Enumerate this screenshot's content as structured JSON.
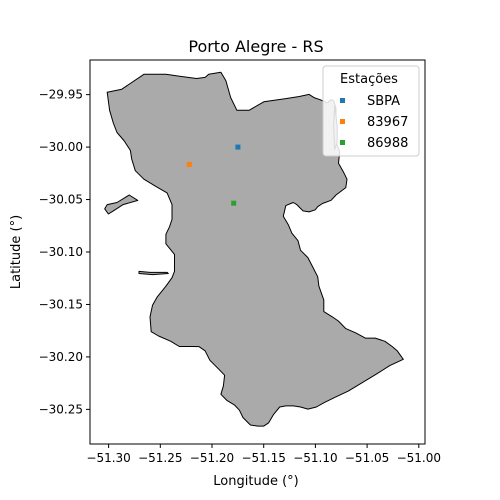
{
  "map": {
    "title": "Porto Alegre - RS",
    "xlabel": "Longitude (°)",
    "ylabel": "Latitude (°)",
    "xlim": [
      -51.318,
      -50.994
    ],
    "ylim": [
      -30.283,
      -29.917
    ],
    "x_ticks": [
      {
        "value": -51.3,
        "label": "−51.30"
      },
      {
        "value": -51.25,
        "label": "−51.25"
      },
      {
        "value": -51.2,
        "label": "−51.20"
      },
      {
        "value": -51.15,
        "label": "−51.15"
      },
      {
        "value": -51.1,
        "label": "−51.10"
      },
      {
        "value": -51.05,
        "label": "−51.05"
      },
      {
        "value": -51.0,
        "label": "−51.00"
      }
    ],
    "y_ticks": [
      {
        "value": -29.95,
        "label": "−29.95"
      },
      {
        "value": -30.0,
        "label": "−30.00"
      },
      {
        "value": -30.05,
        "label": "−30.05"
      },
      {
        "value": -30.1,
        "label": "−30.10"
      },
      {
        "value": -30.15,
        "label": "−30.15"
      },
      {
        "value": -30.2,
        "label": "−30.20"
      },
      {
        "value": -30.25,
        "label": "−30.25"
      }
    ],
    "polygon_fill": "#aaaaaa",
    "polygon_stroke": "#000000",
    "boundary": [
      [
        -51.3014,
        -29.9478
      ],
      [
        -51.2872,
        -29.9448
      ],
      [
        -51.2659,
        -29.9306
      ],
      [
        -51.2446,
        -29.9306
      ],
      [
        -51.2304,
        -29.9326
      ],
      [
        -51.215,
        -29.9346
      ],
      [
        -51.2067,
        -29.9336
      ],
      [
        -51.2032,
        -29.9306
      ],
      [
        -51.1914,
        -29.9286
      ],
      [
        -51.1866,
        -29.9367
      ],
      [
        -51.1819,
        -29.9528
      ],
      [
        -51.1759,
        -29.9649
      ],
      [
        -51.1641,
        -29.9649
      ],
      [
        -51.1499,
        -29.9568
      ],
      [
        -51.1286,
        -29.9538
      ],
      [
        -51.1156,
        -29.9518
      ],
      [
        -51.1061,
        -29.9498
      ],
      [
        -51.1014,
        -29.9528
      ],
      [
        -51.0955,
        -29.9548
      ],
      [
        -51.0884,
        -29.9579
      ],
      [
        -51.0848,
        -29.9548
      ],
      [
        -51.0824,
        -29.9558
      ],
      [
        -51.0801,
        -29.9629
      ],
      [
        -51.0801,
        -29.978
      ],
      [
        -51.0813,
        -29.9922
      ],
      [
        -51.0765,
        -30.0043
      ],
      [
        -51.0777,
        -30.0154
      ],
      [
        -51.073,
        -30.0235
      ],
      [
        -51.0694,
        -30.0306
      ],
      [
        -51.0706,
        -30.0386
      ],
      [
        -51.0801,
        -30.0457
      ],
      [
        -51.0848,
        -30.0507
      ],
      [
        -51.0931,
        -30.0538
      ],
      [
        -51.0978,
        -30.0568
      ],
      [
        -51.1002,
        -30.0598
      ],
      [
        -51.1061,
        -30.0618
      ],
      [
        -51.112,
        -30.0608
      ],
      [
        -51.118,
        -30.0548
      ],
      [
        -51.1215,
        -30.0528
      ],
      [
        -51.1286,
        -30.0558
      ],
      [
        -51.131,
        -30.0659
      ],
      [
        -51.1262,
        -30.074
      ],
      [
        -51.1227,
        -30.0821
      ],
      [
        -51.1168,
        -30.0892
      ],
      [
        -51.1144,
        -30.0983
      ],
      [
        -51.1073,
        -30.1053
      ],
      [
        -51.1025,
        -30.1144
      ],
      [
        -51.0978,
        -30.1235
      ],
      [
        -51.0966,
        -30.1326
      ],
      [
        -51.0919,
        -30.1457
      ],
      [
        -51.0919,
        -30.1568
      ],
      [
        -51.0836,
        -30.1619
      ],
      [
        -51.0777,
        -30.1659
      ],
      [
        -51.0706,
        -30.173
      ],
      [
        -51.0611,
        -30.177
      ],
      [
        -51.0517,
        -30.1821
      ],
      [
        -51.0422,
        -30.1821
      ],
      [
        -51.0327,
        -30.1851
      ],
      [
        -51.0256,
        -30.1902
      ],
      [
        -51.0209,
        -30.1942
      ],
      [
        -51.015,
        -30.2023
      ],
      [
        -51.028,
        -30.2083
      ],
      [
        -51.041,
        -30.2164
      ],
      [
        -51.0564,
        -30.2255
      ],
      [
        -51.0682,
        -30.2326
      ],
      [
        -51.0813,
        -30.2386
      ],
      [
        -51.0919,
        -30.2437
      ],
      [
        -51.099,
        -30.2477
      ],
      [
        -51.1073,
        -30.2497
      ],
      [
        -51.1144,
        -30.2477
      ],
      [
        -51.1215,
        -30.2467
      ],
      [
        -51.1286,
        -30.2467
      ],
      [
        -51.1345,
        -30.2477
      ],
      [
        -51.1404,
        -30.2548
      ],
      [
        -51.1452,
        -30.2628
      ],
      [
        -51.1499,
        -30.2659
      ],
      [
        -51.1558,
        -30.2659
      ],
      [
        -51.1629,
        -30.2649
      ],
      [
        -51.17,
        -30.2578
      ],
      [
        -51.1735,
        -30.2508
      ],
      [
        -51.1783,
        -30.2457
      ],
      [
        -51.1854,
        -30.2416
      ],
      [
        -51.1914,
        -30.2356
      ],
      [
        -51.189,
        -30.2275
      ],
      [
        -51.1878,
        -30.2174
      ],
      [
        -51.1949,
        -30.2103
      ],
      [
        -51.202,
        -30.2032
      ],
      [
        -51.2067,
        -30.1942
      ],
      [
        -51.2127,
        -30.1902
      ],
      [
        -51.2186,
        -30.1901
      ],
      [
        -51.2316,
        -30.1901
      ],
      [
        -51.2399,
        -30.1851
      ],
      [
        -51.2517,
        -30.1801
      ],
      [
        -51.2588,
        -30.176
      ],
      [
        -51.26,
        -30.1619
      ],
      [
        -51.2576,
        -30.1508
      ],
      [
        -51.2529,
        -30.1427
      ],
      [
        -51.2446,
        -30.1326
      ],
      [
        -51.2387,
        -30.1245
      ],
      [
        -51.2363,
        -30.1184
      ],
      [
        -51.2363,
        -30.1104
      ],
      [
        -51.2363,
        -30.1023
      ],
      [
        -51.2446,
        -30.0922
      ],
      [
        -51.2446,
        -30.0831
      ],
      [
        -51.2411,
        -30.076
      ],
      [
        -51.2387,
        -30.0689
      ],
      [
        -51.2387,
        -30.0609
      ],
      [
        -51.2387,
        -30.0548
      ],
      [
        -51.2434,
        -30.0437
      ],
      [
        -51.2541,
        -30.0377
      ],
      [
        -51.2659,
        -30.0306
      ],
      [
        -51.2742,
        -30.0225
      ],
      [
        -51.2777,
        -30.0114
      ],
      [
        -51.2789,
        -30.0033
      ],
      [
        -51.2848,
        -29.9942
      ],
      [
        -51.2919,
        -29.9861
      ],
      [
        -51.2955,
        -29.977
      ],
      [
        -51.299,
        -29.9649
      ],
      [
        -51.3014,
        -29.9478
      ]
    ],
    "island_left": [
      [
        -51.2718,
        -30.0508
      ],
      [
        -51.286,
        -30.0548
      ],
      [
        -51.2955,
        -30.0608
      ],
      [
        -51.3002,
        -30.0638
      ],
      [
        -51.3038,
        -30.0588
      ],
      [
        -51.3014,
        -30.0548
      ],
      [
        -51.2919,
        -30.0528
      ],
      [
        -51.2801,
        -30.0457
      ],
      [
        -51.2718,
        -30.0508
      ]
    ],
    "island_left2": [
      [
        -51.2706,
        -30.1185
      ],
      [
        -51.26,
        -30.1194
      ],
      [
        -51.2434,
        -30.1194
      ],
      [
        -51.2423,
        -30.1205
      ],
      [
        -51.2576,
        -30.1215
      ],
      [
        -51.2706,
        -30.1205
      ],
      [
        -51.2706,
        -30.1185
      ]
    ],
    "island_right": [
      [
        -51.0813,
        -29.9598
      ],
      [
        -51.0789,
        -29.98
      ],
      [
        -51.0789,
        -29.9951
      ],
      [
        -51.0813,
        -30.0023
      ],
      [
        -51.0824,
        -29.98
      ],
      [
        -51.0813,
        -29.9598
      ]
    ],
    "legend": {
      "title": "Estações",
      "location": "upper right"
    },
    "stations": [
      {
        "name": "SBPA",
        "lon": -51.175,
        "lat": -30.0,
        "color": "#1f77b4"
      },
      {
        "name": "83967",
        "lon": -51.222,
        "lat": -30.0165,
        "color": "#ff7f0e"
      },
      {
        "name": "86988",
        "lon": -51.179,
        "lat": -30.0535,
        "color": "#2ca02c"
      }
    ]
  }
}
